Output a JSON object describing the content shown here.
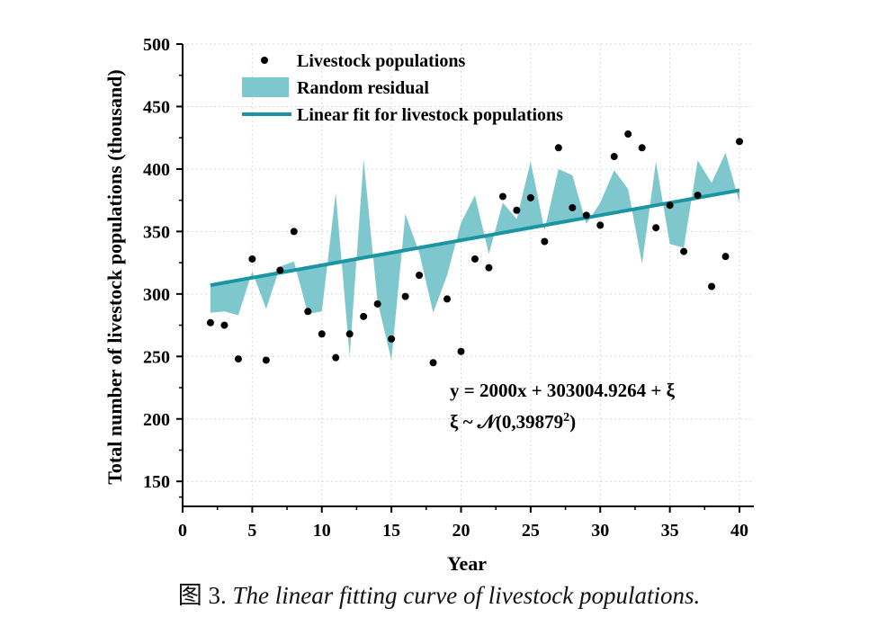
{
  "colors": {
    "residual_fill": "#7ec7cc",
    "fit_line": "#1b95a1",
    "points": "#000000",
    "grid": "#d9d9d9"
  },
  "caption": {
    "prefix": "图 3.",
    "text": "The linear fitting curve of livestock populations."
  },
  "equation": {
    "line1": "y = 2000x + 303004.9264 + ξ",
    "line2_lead": "ξ ~ 𝒩(0,39879",
    "line2_sup": "2",
    "line2_tail": ")"
  },
  "chart_data": {
    "type": "scatter",
    "xlabel": "Year",
    "ylabel": "Total number of livestock populations (thousand)",
    "xlim": [
      0,
      40
    ],
    "ylim": [
      130,
      500
    ],
    "xticks": [
      0,
      5,
      10,
      15,
      20,
      25,
      30,
      35,
      40
    ],
    "yticks": [
      150,
      200,
      250,
      300,
      350,
      400,
      450,
      500
    ],
    "grid": "dotted",
    "legend_position": "top-left",
    "legend": [
      {
        "label": "Livestock populations",
        "kind": "point"
      },
      {
        "label": "Random residual",
        "kind": "band"
      },
      {
        "label": "Linear fit for livestock populations",
        "kind": "line"
      }
    ],
    "fit_line": {
      "x": [
        2,
        40
      ],
      "y": [
        307,
        383
      ]
    },
    "points": [
      {
        "x": 2,
        "y": 277
      },
      {
        "x": 3,
        "y": 275
      },
      {
        "x": 4,
        "y": 248
      },
      {
        "x": 5,
        "y": 328
      },
      {
        "x": 6,
        "y": 247
      },
      {
        "x": 7,
        "y": 319
      },
      {
        "x": 8,
        "y": 350
      },
      {
        "x": 9,
        "y": 286
      },
      {
        "x": 10,
        "y": 268
      },
      {
        "x": 11,
        "y": 249
      },
      {
        "x": 12,
        "y": 268
      },
      {
        "x": 13,
        "y": 282
      },
      {
        "x": 14,
        "y": 292
      },
      {
        "x": 15,
        "y": 264
      },
      {
        "x": 16,
        "y": 298
      },
      {
        "x": 17,
        "y": 315
      },
      {
        "x": 18,
        "y": 245
      },
      {
        "x": 19,
        "y": 296
      },
      {
        "x": 20,
        "y": 254
      },
      {
        "x": 21,
        "y": 328
      },
      {
        "x": 22,
        "y": 321
      },
      {
        "x": 23,
        "y": 378
      },
      {
        "x": 24,
        "y": 367
      },
      {
        "x": 25,
        "y": 377
      },
      {
        "x": 26,
        "y": 342
      },
      {
        "x": 27,
        "y": 417
      },
      {
        "x": 28,
        "y": 369
      },
      {
        "x": 29,
        "y": 363
      },
      {
        "x": 30,
        "y": 355
      },
      {
        "x": 31,
        "y": 410
      },
      {
        "x": 32,
        "y": 428
      },
      {
        "x": 33,
        "y": 417
      },
      {
        "x": 34,
        "y": 353
      },
      {
        "x": 35,
        "y": 371
      },
      {
        "x": 36,
        "y": 334
      },
      {
        "x": 37,
        "y": 379
      },
      {
        "x": 38,
        "y": 306
      },
      {
        "x": 39,
        "y": 330
      },
      {
        "x": 40,
        "y": 422
      }
    ],
    "residual_band": [
      {
        "x": 2,
        "y": 285
      },
      {
        "x": 3,
        "y": 286
      },
      {
        "x": 4,
        "y": 283
      },
      {
        "x": 5,
        "y": 318
      },
      {
        "x": 6,
        "y": 288
      },
      {
        "x": 7,
        "y": 322
      },
      {
        "x": 8,
        "y": 326
      },
      {
        "x": 9,
        "y": 284
      },
      {
        "x": 10,
        "y": 286
      },
      {
        "x": 11,
        "y": 381
      },
      {
        "x": 12,
        "y": 250
      },
      {
        "x": 13,
        "y": 408
      },
      {
        "x": 14,
        "y": 294
      },
      {
        "x": 15,
        "y": 247
      },
      {
        "x": 16,
        "y": 364
      },
      {
        "x": 17,
        "y": 333
      },
      {
        "x": 18,
        "y": 285
      },
      {
        "x": 19,
        "y": 315
      },
      {
        "x": 20,
        "y": 357
      },
      {
        "x": 21,
        "y": 379
      },
      {
        "x": 22,
        "y": 332
      },
      {
        "x": 23,
        "y": 373
      },
      {
        "x": 24,
        "y": 360
      },
      {
        "x": 25,
        "y": 406
      },
      {
        "x": 26,
        "y": 351
      },
      {
        "x": 27,
        "y": 400
      },
      {
        "x": 28,
        "y": 395
      },
      {
        "x": 29,
        "y": 356
      },
      {
        "x": 30,
        "y": 373
      },
      {
        "x": 31,
        "y": 399
      },
      {
        "x": 32,
        "y": 384
      },
      {
        "x": 33,
        "y": 324
      },
      {
        "x": 34,
        "y": 406
      },
      {
        "x": 35,
        "y": 340
      },
      {
        "x": 36,
        "y": 337
      },
      {
        "x": 37,
        "y": 407
      },
      {
        "x": 38,
        "y": 389
      },
      {
        "x": 39,
        "y": 413
      },
      {
        "x": 40,
        "y": 373
      }
    ]
  }
}
